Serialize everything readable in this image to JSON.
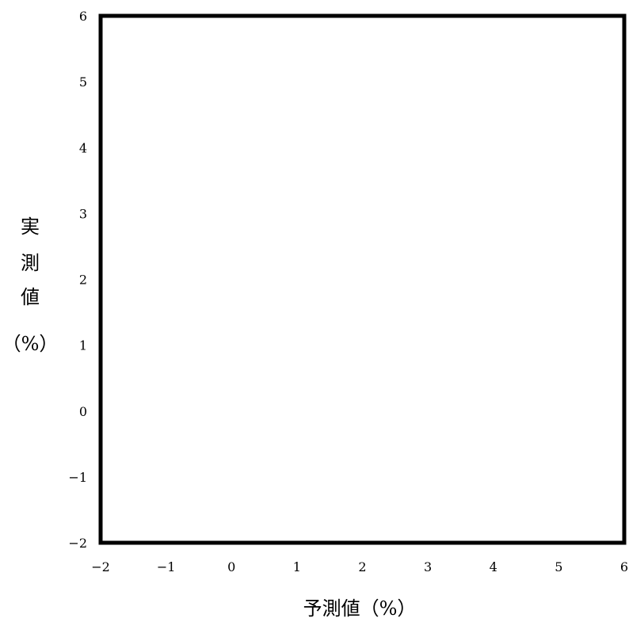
{
  "chart_data": {
    "type": "scatter",
    "title": "",
    "xlabel": "予測値（%）",
    "ylabel": "実測値（%）",
    "ylabel_lines": [
      "実",
      "測",
      "値",
      "（%）"
    ],
    "xlim": [
      -2,
      6
    ],
    "ylim": [
      -2,
      6
    ],
    "x_ticks": [
      "−2",
      "−1",
      "0",
      "1",
      "2",
      "3",
      "4",
      "5",
      "6"
    ],
    "y_ticks": [
      "−2",
      "−1",
      "0",
      "1",
      "2",
      "3",
      "4",
      "5",
      "6"
    ],
    "series": [],
    "grid": false,
    "legend": "none",
    "frame_color": "#000000"
  }
}
